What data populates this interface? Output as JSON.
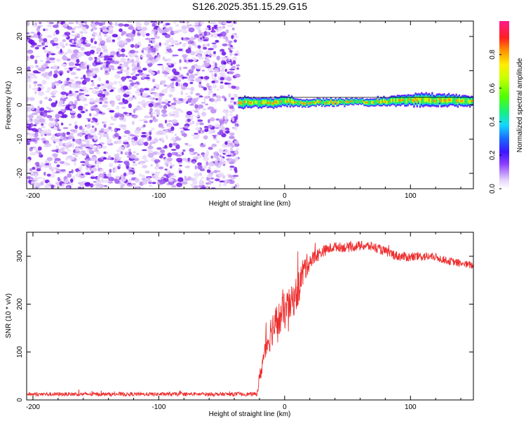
{
  "title": "S126.2025.351.15.29.G15",
  "colors": {
    "snr_line": "#ee2d2d",
    "cluster_core": "#7a1cf0",
    "cluster_light": "#d9b8f5",
    "axis": "#000000"
  },
  "chart_data": [
    {
      "type": "heatmap",
      "name": "spectrogram",
      "xlabel": "Height of straight line (km)",
      "ylabel": "Frequency (Hz)",
      "xlim": [
        -205,
        150
      ],
      "ylim": [
        -24.5,
        24.5
      ],
      "xticks": [
        -200,
        -100,
        0,
        100
      ],
      "xtick_labels": [
        "-200",
        "-100",
        "0",
        "100"
      ],
      "yticks": [
        -20,
        -10,
        0,
        10,
        20
      ],
      "ytick_labels": [
        "-20",
        "-10",
        "0",
        "10",
        "20"
      ],
      "noise_region_x": [
        -205,
        -37
      ],
      "signal_band": {
        "x": [
          -37,
          -25,
          -10,
          0,
          10,
          30,
          60,
          90,
          110,
          130,
          150
        ],
        "freq_center": [
          0.4,
          0.8,
          0.5,
          1.3,
          0.6,
          0.8,
          0.8,
          1.2,
          1.6,
          1.3,
          1.0
        ],
        "half_width": [
          1.9,
          1.4,
          1.6,
          1.6,
          1.2,
          1.1,
          1.0,
          1.5,
          2.0,
          1.8,
          1.4
        ]
      },
      "colorbar": {
        "label": "Normalized spectral amplitude",
        "range": [
          0,
          1
        ],
        "ticks": [
          0.0,
          0.2,
          0.4,
          0.6,
          0.8
        ],
        "tick_labels": [
          "0.0",
          "0.2",
          "0.4",
          "0.6",
          "0.8"
        ]
      }
    },
    {
      "type": "line",
      "name": "snr",
      "xlabel": "Height of straight line (km)",
      "ylabel": "SNR (10 * v/v)",
      "xlim": [
        -205,
        150
      ],
      "ylim": [
        0,
        350
      ],
      "xticks": [
        -200,
        -100,
        0,
        100
      ],
      "xtick_labels": [
        "-200",
        "-100",
        "0",
        "100"
      ],
      "yticks": [
        0,
        100,
        200,
        300
      ],
      "ytick_labels": [
        "0",
        "100",
        "200",
        "300"
      ],
      "series": [
        {
          "name": "SNR",
          "x": [
            -205,
            -150,
            -100,
            -50,
            -22,
            -20,
            -15,
            -10,
            -5,
            0,
            5,
            10,
            15,
            20,
            30,
            40,
            50,
            60,
            70,
            80,
            90,
            100,
            110,
            120,
            130,
            140,
            150
          ],
          "y": [
            12,
            12,
            12,
            12,
            12,
            45,
            110,
            150,
            165,
            185,
            200,
            225,
            270,
            290,
            310,
            320,
            318,
            322,
            320,
            310,
            300,
            298,
            300,
            298,
            290,
            285,
            280
          ],
          "noise_amplitude": [
            4,
            4,
            4,
            4,
            4,
            15,
            30,
            38,
            40,
            40,
            35,
            38,
            32,
            18,
            12,
            10,
            10,
            10,
            10,
            10,
            10,
            10,
            10,
            8,
            8,
            8,
            8
          ]
        }
      ]
    }
  ]
}
